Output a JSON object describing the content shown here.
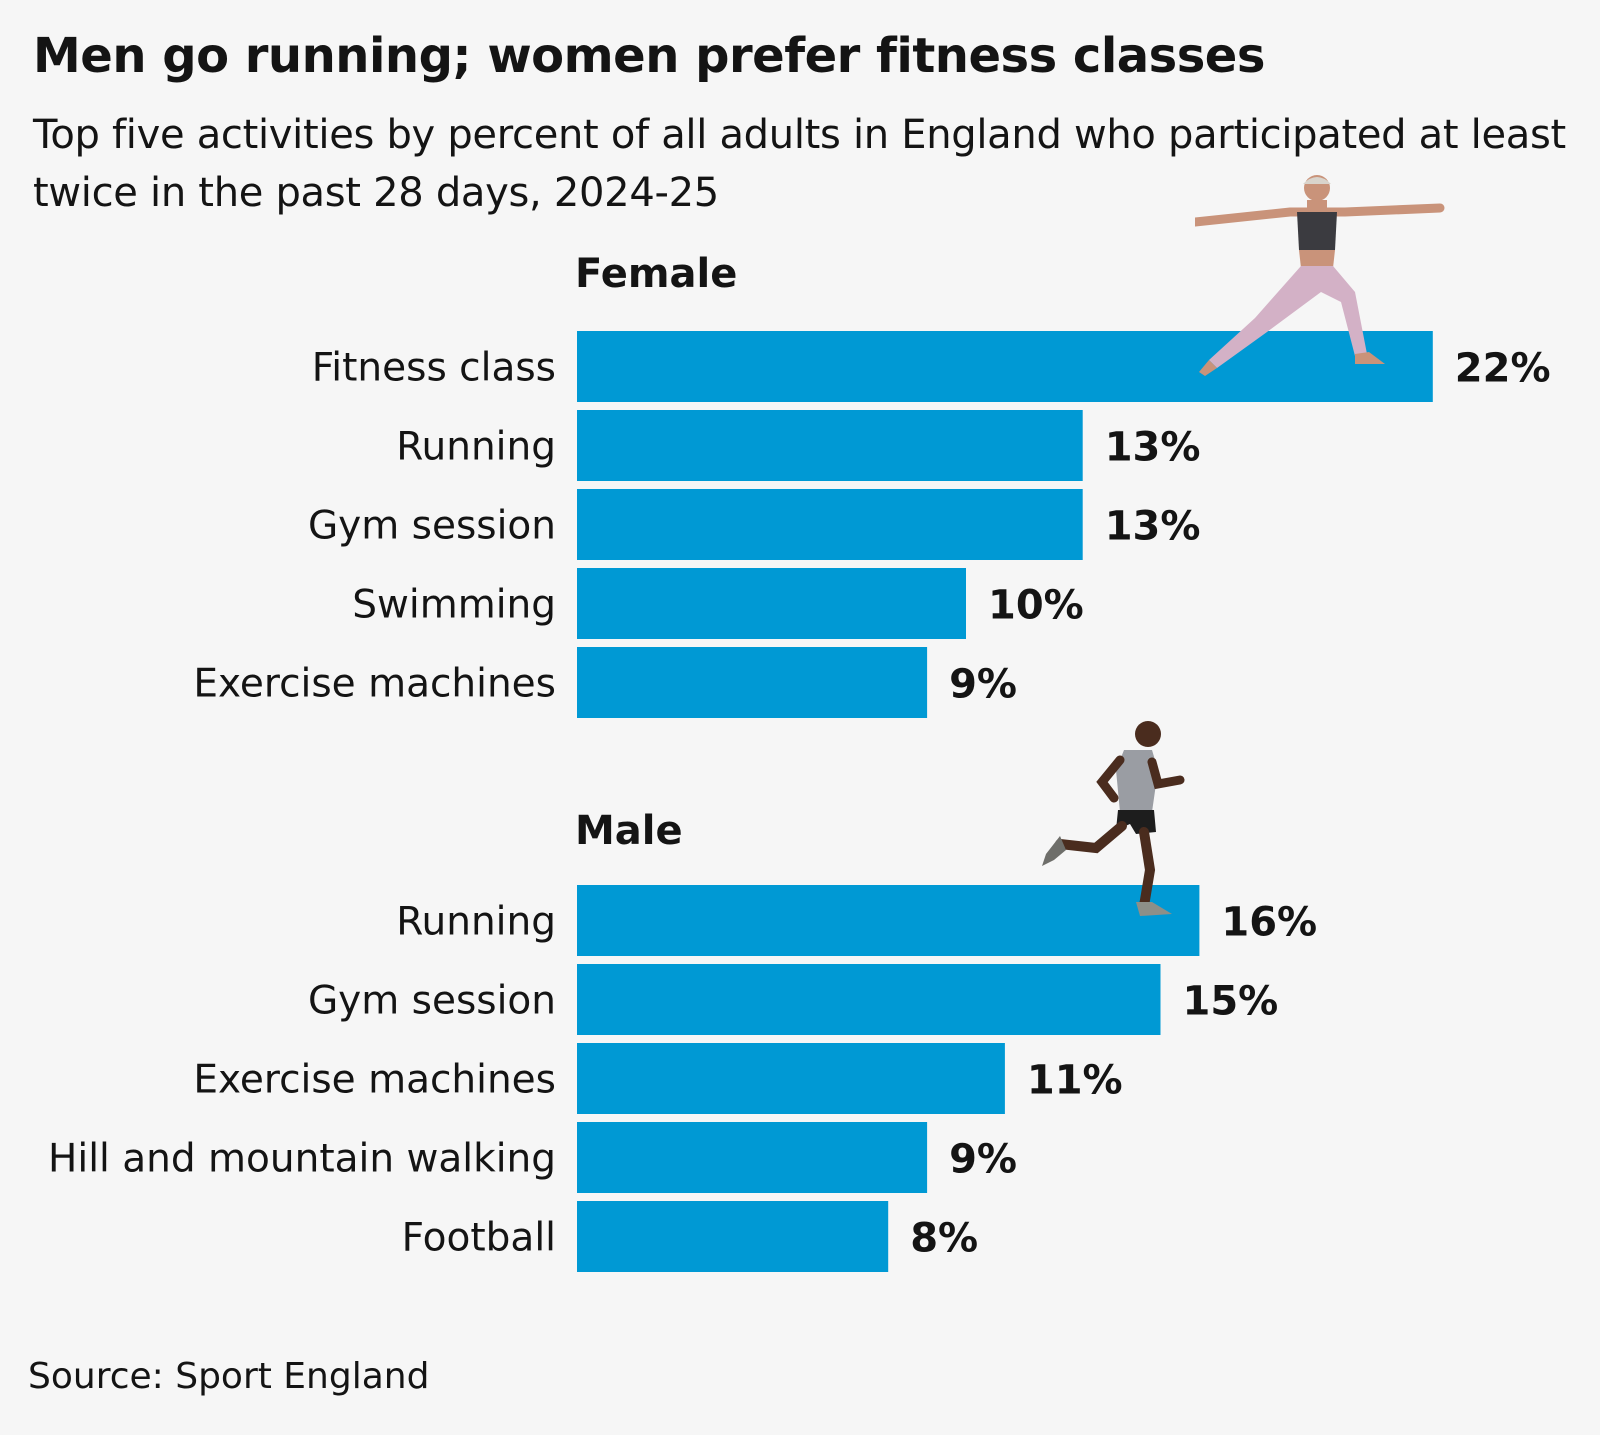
{
  "title": "Men go running; women prefer fitness classes",
  "subtitle": "Top five activities by percent of all adults in England who participated at least twice in the past 28 days, 2024-25",
  "source": "Source: Sport England",
  "colors": {
    "bar": "#0099d4",
    "background": "#f6f6f6",
    "text": "#141414"
  },
  "chart_data": [
    {
      "type": "bar",
      "orientation": "horizontal",
      "title": "Female",
      "categories": [
        "Fitness class",
        "Running",
        "Gym session",
        "Swimming",
        "Exercise machines"
      ],
      "values": [
        22,
        13,
        13,
        10,
        9
      ],
      "value_labels": [
        "22%",
        "13%",
        "13%",
        "10%",
        "9%"
      ],
      "unit": "%",
      "grid": false,
      "illustration": "yoga-woman"
    },
    {
      "type": "bar",
      "orientation": "horizontal",
      "title": "Male",
      "categories": [
        "Running",
        "Gym session",
        "Exercise machines",
        "Hill and mountain walking",
        "Football"
      ],
      "values": [
        16,
        15,
        11,
        9,
        8
      ],
      "value_labels": [
        "16%",
        "15%",
        "11%",
        "9%",
        "8%"
      ],
      "unit": "%",
      "grid": false,
      "illustration": "running-man"
    }
  ]
}
